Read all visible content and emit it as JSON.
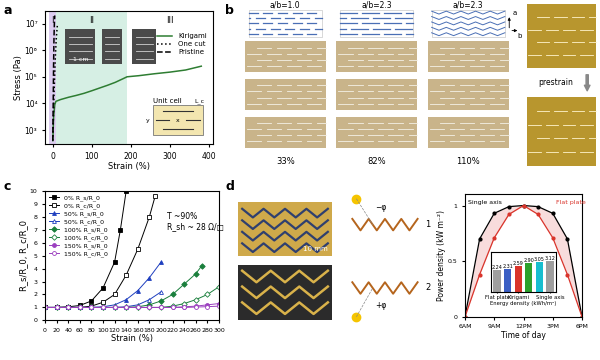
{
  "panel_labels": [
    "a",
    "b",
    "c",
    "d"
  ],
  "chart_data": [
    {
      "type": "line",
      "xlabel": "Strain (%)",
      "ylabel": "Stress (Pa)",
      "log": "y",
      "xlim": [
        -20,
        410
      ],
      "xticks": [
        0,
        100,
        200,
        300,
        400
      ],
      "ylim": [
        300,
        30000000
      ],
      "yticks": [
        {
          "value": 1000,
          "label": "10³"
        },
        {
          "value": 10000,
          "label": "10⁴"
        },
        {
          "value": 100000,
          "label": "10⁵"
        },
        {
          "value": 1000000,
          "label": "10⁶"
        },
        {
          "value": 10000000,
          "label": "10⁷"
        }
      ],
      "legend": "upper right",
      "regions": [
        {
          "label": "I",
          "range": [
            -10,
            8
          ],
          "color": "#dcccf0"
        },
        {
          "label": "II",
          "range": [
            8,
            190
          ],
          "color": "#d6efe4"
        },
        {
          "label": "III",
          "range": [
            190,
            410
          ]
        }
      ],
      "series": [
        {
          "name": "Kirigami",
          "color": "#2e7d32",
          "line_style": "solid",
          "x": [
            0,
            2,
            5,
            8,
            20,
            40,
            60,
            80,
            100,
            120,
            140,
            160,
            180,
            190,
            220,
            260,
            300,
            340,
            380
          ],
          "values": [
            400,
            3000,
            9000,
            12000,
            14000,
            17000,
            20000,
            24000,
            30000,
            38000,
            48000,
            62000,
            85000,
            100000,
            110000,
            130000,
            150000,
            180000,
            250000
          ]
        },
        {
          "name": "One cut",
          "color": "#000000",
          "line_style": "dotted",
          "x": [
            0,
            3,
            6,
            9,
            12
          ],
          "values": [
            400,
            20000,
            400000,
            3000000,
            10000000
          ]
        },
        {
          "name": "Pristine",
          "color": "#000000",
          "line_style": "dashed",
          "x": [
            0,
            1,
            2,
            3,
            4,
            5
          ],
          "values": [
            400,
            10000,
            300000,
            3000000,
            10000000,
            20000000
          ]
        }
      ],
      "annotations": {
        "scale_bar": "1 cm",
        "unit_cell": "Unit cell",
        "unit_cell_labels": [
          "x",
          "L_c",
          "y"
        ]
      }
    },
    {
      "type": "line",
      "xlabel": "Strain (%)",
      "ylabel": "R_s/R_0, R_c/R_0",
      "xlim": [
        0,
        300
      ],
      "xticks": [
        0,
        20,
        40,
        60,
        80,
        100,
        120,
        140,
        160,
        180,
        200,
        220,
        240,
        260,
        280,
        300
      ],
      "ylim": [
        0,
        10
      ],
      "yticks": [
        0,
        1,
        2,
        3,
        4,
        5,
        6,
        7,
        8,
        9,
        10
      ],
      "legend": "upper left",
      "series": [
        {
          "name": "0% R_s/R_0",
          "color": "#000000",
          "marker": "square",
          "x": [
            0,
            20,
            40,
            60,
            80,
            100,
            120,
            130,
            140
          ],
          "values": [
            1,
            1,
            1.05,
            1.15,
            1.5,
            2.5,
            4.5,
            7,
            10
          ]
        },
        {
          "name": "0% R_c/R_0",
          "color": "#000000",
          "marker": "square_open",
          "x": [
            0,
            20,
            40,
            60,
            80,
            100,
            120,
            140,
            160,
            180,
            190
          ],
          "values": [
            1,
            1,
            1,
            1,
            1.1,
            1.4,
            2,
            3.5,
            5.5,
            8,
            9.6
          ]
        },
        {
          "name": "50% R_s/R_0",
          "color": "#1f3fbf",
          "marker": "triangle",
          "x": [
            0,
            20,
            40,
            60,
            80,
            100,
            120,
            140,
            160,
            180,
            200
          ],
          "values": [
            1,
            1,
            1,
            1,
            1,
            1.05,
            1.2,
            1.6,
            2.3,
            3.3,
            4.5
          ]
        },
        {
          "name": "50% R_c/R_0",
          "color": "#1f3fbf",
          "marker": "triangle_open",
          "x": [
            0,
            20,
            40,
            60,
            80,
            100,
            120,
            140,
            160,
            180,
            200
          ],
          "values": [
            1,
            1,
            1,
            1,
            1,
            1,
            1,
            1.05,
            1.2,
            1.6,
            2.2
          ]
        },
        {
          "name": "100% R_s/R_0",
          "color": "#1a7f3c",
          "marker": "diamond",
          "x": [
            0,
            20,
            40,
            60,
            80,
            100,
            120,
            140,
            160,
            180,
            200,
            220,
            240,
            260,
            270
          ],
          "values": [
            1,
            1,
            1,
            1,
            1,
            1,
            1,
            1,
            1.05,
            1.2,
            1.5,
            2,
            2.8,
            3.6,
            4.2
          ]
        },
        {
          "name": "100% R_c/R_0",
          "color": "#1a7f3c",
          "marker": "diamond_open",
          "x": [
            0,
            20,
            40,
            60,
            80,
            100,
            120,
            140,
            160,
            180,
            200,
            220,
            240,
            260,
            280,
            300
          ],
          "values": [
            1,
            1,
            1,
            1,
            1,
            1,
            1,
            1,
            1,
            1,
            1,
            1.1,
            1.3,
            1.6,
            2,
            2.6
          ]
        },
        {
          "name": "150% R_s/R_0",
          "color": "#9b3fbf",
          "marker": "circle",
          "x": [
            0,
            20,
            40,
            60,
            80,
            100,
            120,
            140,
            160,
            180,
            200,
            220,
            240,
            260,
            280,
            300
          ],
          "values": [
            1,
            1,
            1,
            1,
            1,
            1,
            1,
            1,
            1,
            1,
            1,
            1,
            1.05,
            1.1,
            1.2,
            1.3
          ]
        },
        {
          "name": "150% R_c/R_0",
          "color": "#9b3fbf",
          "marker": "circle_open",
          "x": [
            0,
            20,
            40,
            60,
            80,
            100,
            120,
            140,
            160,
            180,
            200,
            220,
            240,
            260,
            280,
            300
          ],
          "values": [
            1,
            1,
            1,
            1,
            1,
            1,
            1,
            1,
            1,
            1,
            1,
            1,
            1,
            1.03,
            1.06,
            1.1
          ]
        }
      ],
      "annotations": [
        "T ~90%",
        "R_sh ~ 28 Ω/□"
      ]
    },
    {
      "type": "line",
      "xlabel": "Time of day",
      "ylabel": "Power density (kW m⁻²)",
      "x": [
        6,
        7.5,
        9,
        10.5,
        12,
        13.5,
        15,
        16.5,
        18
      ],
      "xlim": [
        6,
        18
      ],
      "xticks": [
        {
          "value": 6,
          "label": "6AM"
        },
        {
          "value": 9,
          "label": "9AM"
        },
        {
          "value": 12,
          "label": "12PM"
        },
        {
          "value": 15,
          "label": "3PM"
        },
        {
          "value": 18,
          "label": "6PM"
        }
      ],
      "ylim": [
        0,
        1.1
      ],
      "yticks": [
        0,
        0.5,
        1
      ],
      "series": [
        {
          "name": "Single axis",
          "color": "#000000",
          "values": [
            0,
            0.7,
            0.93,
            0.99,
            1.0,
            0.99,
            0.93,
            0.7,
            0
          ]
        },
        {
          "name": "Flat plate",
          "color": "#d9342b",
          "values": [
            0,
            0.38,
            0.71,
            0.92,
            1.0,
            0.92,
            0.71,
            0.38,
            0
          ]
        }
      ]
    },
    {
      "type": "bar",
      "xlabel": "Energy density (kWh/m²)",
      "categories": [
        "Flat plate",
        null,
        "Kirigami",
        null,
        null,
        "Single axis"
      ],
      "values": [
        2.24,
        2.31,
        2.59,
        2.9,
        3.05,
        3.12
      ],
      "value_labels": [
        "2.24",
        "2.31",
        "2.59",
        "2.90",
        "3.05",
        "3.12"
      ],
      "colors": [
        "#9e9e9e",
        "#3b5fc4",
        "#d9342b",
        "#2ca02c",
        "#17becf",
        "#9e9e9e"
      ],
      "ylim": [
        0,
        4
      ],
      "data_labels": true,
      "tick_labels": "x"
    }
  ],
  "panel_b": {
    "ratios": [
      "a/b=1.0",
      "a/b=2.3",
      "a/b=2.3"
    ],
    "directions": [
      "a",
      "b"
    ],
    "strains": [
      "33%",
      "82%",
      "110%"
    ],
    "prestrain": "prestrain"
  },
  "panel_d_photos": {
    "scale_bar": "10 mm",
    "schematic_labels": [
      "−φ",
      "1",
      "+φ",
      "2"
    ]
  }
}
